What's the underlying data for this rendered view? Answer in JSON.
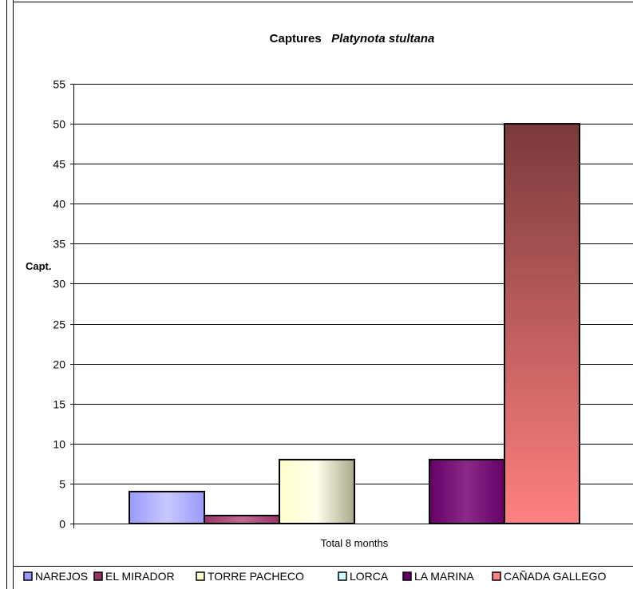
{
  "chart_data": {
    "type": "bar",
    "title": "Captures",
    "title_species": "Platynota stultana",
    "ylabel": "Capt.",
    "xlabel": "",
    "categories": [
      "Total  8 months"
    ],
    "ylim": [
      0,
      55
    ],
    "yticks": [
      0,
      5,
      10,
      15,
      20,
      25,
      30,
      35,
      40,
      45,
      50,
      55
    ],
    "grid": true,
    "legend_position": "bottom",
    "series": [
      {
        "name": "NAREJOS",
        "values": [
          4
        ],
        "color": "#9999ff",
        "color_light": "#c8c8ff"
      },
      {
        "name": "EL MIRADOR",
        "values": [
          1
        ],
        "color": "#993366",
        "color_light": "#c26b96"
      },
      {
        "name": "TORRE PACHECO",
        "values": [
          8
        ],
        "color": "#ffffcc",
        "color_light": "#ffffee",
        "color_dark": "#a8a888"
      },
      {
        "name": "LORCA",
        "values": [
          0
        ],
        "color": "#ccffff",
        "color_light": "#eeffff"
      },
      {
        "name": "LA MARINA",
        "values": [
          8
        ],
        "color": "#660066",
        "color_light": "#8a2a8a"
      },
      {
        "name": "CAÑADA GALLEGO",
        "values": [
          50
        ],
        "color": "#ff8080",
        "color_light": "#ff8080",
        "color_dark": "#7a3a3a"
      }
    ]
  }
}
